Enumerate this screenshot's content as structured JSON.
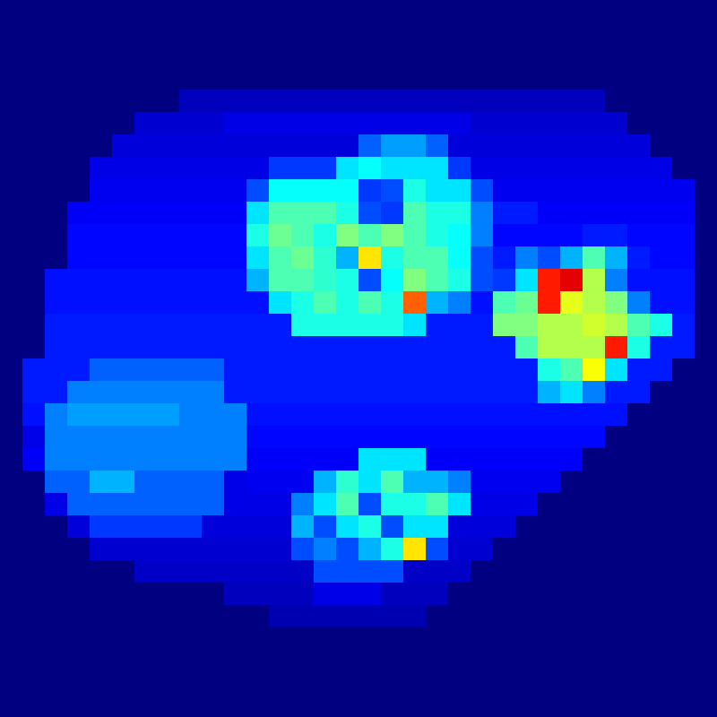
{
  "chart_data": {
    "type": "heatmap",
    "tick_labels": false,
    "zlim": [
      0,
      100
    ],
    "cells": [
      [
        0,
        0,
        0,
        0,
        0,
        0,
        0,
        0,
        0,
        0,
        0,
        0,
        0,
        0,
        0,
        0,
        0,
        0,
        0,
        0,
        0,
        0,
        0,
        0,
        0,
        0,
        0,
        0,
        0,
        0,
        0,
        0
      ],
      [
        0,
        0,
        0,
        0,
        0,
        0,
        0,
        0,
        0,
        0,
        0,
        0,
        0,
        0,
        0,
        0,
        0,
        0,
        0,
        0,
        0,
        0,
        0,
        0,
        0,
        0,
        0,
        0,
        0,
        0,
        0,
        0
      ],
      [
        0,
        0,
        0,
        0,
        0,
        0,
        0,
        0,
        0,
        0,
        0,
        0,
        0,
        0,
        0,
        0,
        0,
        0,
        0,
        0,
        0,
        0,
        0,
        0,
        0,
        0,
        0,
        0,
        0,
        0,
        0,
        0
      ],
      [
        0,
        0,
        0,
        0,
        0,
        0,
        0,
        0,
        0,
        0,
        0,
        0,
        0,
        0,
        0,
        0,
        0,
        0,
        0,
        0,
        0,
        0,
        0,
        0,
        0,
        0,
        0,
        0,
        0,
        0,
        0,
        0
      ],
      [
        0,
        0,
        0,
        0,
        0,
        0,
        0,
        0,
        6,
        6,
        6,
        6,
        6,
        6,
        6,
        6,
        6,
        6,
        6,
        6,
        6,
        6,
        6,
        6,
        6,
        6,
        6,
        0,
        0,
        0,
        0,
        0
      ],
      [
        0,
        0,
        0,
        0,
        0,
        0,
        8,
        8,
        8,
        8,
        10,
        10,
        10,
        10,
        10,
        10,
        10,
        10,
        10,
        10,
        10,
        8,
        8,
        8,
        8,
        8,
        8,
        8,
        0,
        0,
        0,
        0
      ],
      [
        0,
        0,
        0,
        0,
        0,
        9,
        9,
        9,
        9,
        9,
        9,
        9,
        9,
        9,
        9,
        9,
        22,
        28,
        28,
        22,
        9,
        9,
        9,
        9,
        9,
        9,
        9,
        9,
        9,
        0,
        0,
        0
      ],
      [
        0,
        0,
        0,
        0,
        10,
        10,
        10,
        10,
        10,
        10,
        10,
        10,
        18,
        18,
        18,
        35,
        38,
        35,
        35,
        35,
        18,
        10,
        10,
        10,
        10,
        10,
        10,
        10,
        10,
        10,
        0,
        0
      ],
      [
        0,
        0,
        0,
        0,
        11,
        11,
        11,
        11,
        11,
        11,
        11,
        20,
        38,
        38,
        38,
        38,
        18,
        20,
        40,
        35,
        35,
        20,
        11,
        11,
        11,
        11,
        11,
        11,
        11,
        11,
        11,
        0
      ],
      [
        0,
        0,
        0,
        12,
        12,
        12,
        12,
        12,
        12,
        12,
        12,
        35,
        45,
        45,
        45,
        40,
        20,
        18,
        45,
        40,
        40,
        25,
        15,
        15,
        12,
        12,
        12,
        12,
        12,
        12,
        12,
        0
      ],
      [
        0,
        0,
        0,
        13,
        13,
        13,
        13,
        13,
        13,
        13,
        13,
        40,
        48,
        45,
        40,
        50,
        45,
        50,
        45,
        40,
        38,
        25,
        13,
        13,
        13,
        13,
        15,
        15,
        13,
        13,
        13,
        0
      ],
      [
        0,
        0,
        0,
        13,
        13,
        13,
        13,
        13,
        13,
        13,
        13,
        35,
        45,
        48,
        42,
        30,
        65,
        40,
        45,
        45,
        38,
        20,
        15,
        25,
        20,
        30,
        45,
        30,
        15,
        13,
        13,
        0
      ],
      [
        0,
        0,
        14,
        14,
        14,
        14,
        14,
        14,
        14,
        14,
        14,
        30,
        45,
        45,
        42,
        40,
        20,
        38,
        50,
        45,
        40,
        20,
        18,
        35,
        85,
        90,
        55,
        25,
        14,
        14,
        14,
        0
      ],
      [
        0,
        0,
        14,
        14,
        14,
        14,
        14,
        14,
        14,
        14,
        14,
        14,
        35,
        40,
        45,
        40,
        45,
        40,
        78,
        30,
        25,
        14,
        45,
        48,
        85,
        60,
        55,
        50,
        25,
        14,
        14,
        0
      ],
      [
        0,
        0,
        15,
        15,
        15,
        15,
        15,
        15,
        15,
        15,
        15,
        15,
        15,
        40,
        40,
        40,
        40,
        40,
        35,
        15,
        15,
        15,
        50,
        50,
        55,
        55,
        58,
        55,
        45,
        40,
        15,
        0
      ],
      [
        0,
        0,
        15,
        15,
        15,
        15,
        15,
        15,
        15,
        15,
        15,
        15,
        15,
        15,
        15,
        15,
        15,
        15,
        15,
        15,
        15,
        15,
        15,
        45,
        55,
        55,
        55,
        85,
        40,
        15,
        15,
        0
      ],
      [
        0,
        15,
        15,
        15,
        22,
        22,
        22,
        22,
        22,
        22,
        15,
        15,
        15,
        15,
        15,
        15,
        15,
        15,
        15,
        15,
        15,
        15,
        15,
        15,
        40,
        45,
        62,
        35,
        15,
        15,
        0,
        0
      ],
      [
        0,
        15,
        15,
        25,
        25,
        25,
        25,
        25,
        25,
        25,
        15,
        15,
        15,
        15,
        15,
        15,
        15,
        15,
        15,
        15,
        15,
        15,
        15,
        15,
        30,
        35,
        25,
        15,
        15,
        0,
        0,
        0
      ],
      [
        0,
        14,
        25,
        28,
        28,
        28,
        28,
        28,
        25,
        25,
        25,
        14,
        14,
        14,
        14,
        14,
        14,
        14,
        14,
        14,
        14,
        14,
        14,
        14,
        14,
        14,
        14,
        14,
        0,
        0,
        0,
        0
      ],
      [
        0,
        10,
        25,
        25,
        25,
        25,
        25,
        25,
        25,
        25,
        25,
        13,
        13,
        13,
        13,
        13,
        13,
        13,
        13,
        13,
        13,
        13,
        13,
        13,
        13,
        13,
        13,
        0,
        0,
        0,
        0,
        0
      ],
      [
        0,
        12,
        25,
        25,
        25,
        25,
        25,
        25,
        25,
        25,
        25,
        12,
        12,
        12,
        12,
        12,
        35,
        35,
        35,
        12,
        12,
        12,
        12,
        12,
        12,
        12,
        0,
        0,
        0,
        0,
        0,
        0
      ],
      [
        0,
        0,
        22,
        22,
        30,
        30,
        22,
        22,
        22,
        22,
        10,
        11,
        11,
        11,
        30,
        42,
        35,
        45,
        30,
        30,
        25,
        11,
        11,
        11,
        11,
        0,
        0,
        0,
        0,
        0,
        0,
        0
      ],
      [
        0,
        0,
        10,
        22,
        22,
        22,
        22,
        22,
        22,
        22,
        10,
        10,
        10,
        25,
        35,
        45,
        20,
        40,
        40,
        45,
        35,
        10,
        10,
        10,
        0,
        0,
        0,
        0,
        0,
        0,
        0,
        0
      ],
      [
        0,
        0,
        0,
        9,
        18,
        18,
        18,
        18,
        18,
        9,
        9,
        9,
        9,
        30,
        20,
        35,
        40,
        20,
        35,
        35,
        9,
        9,
        9,
        0,
        0,
        0,
        0,
        0,
        0,
        0,
        0,
        0
      ],
      [
        0,
        0,
        0,
        0,
        8,
        8,
        8,
        8,
        8,
        8,
        8,
        8,
        8,
        20,
        25,
        20,
        30,
        40,
        65,
        20,
        8,
        8,
        0,
        0,
        0,
        0,
        0,
        0,
        0,
        0,
        0,
        0
      ],
      [
        0,
        0,
        0,
        0,
        0,
        0,
        7,
        7,
        7,
        7,
        7,
        7,
        7,
        7,
        20,
        20,
        20,
        20,
        7,
        7,
        7,
        0,
        0,
        0,
        0,
        0,
        0,
        0,
        0,
        0,
        0,
        0
      ],
      [
        0,
        0,
        0,
        0,
        0,
        0,
        0,
        0,
        0,
        0,
        6,
        6,
        6,
        6,
        10,
        10,
        10,
        6,
        6,
        6,
        0,
        0,
        0,
        0,
        0,
        0,
        0,
        0,
        0,
        0,
        0,
        0
      ],
      [
        0,
        0,
        0,
        0,
        0,
        0,
        0,
        0,
        0,
        0,
        0,
        0,
        5,
        5,
        5,
        5,
        5,
        5,
        5,
        0,
        0,
        0,
        0,
        0,
        0,
        0,
        0,
        0,
        0,
        0,
        0,
        0
      ],
      [
        0,
        0,
        0,
        0,
        0,
        0,
        0,
        0,
        0,
        0,
        0,
        0,
        0,
        0,
        0,
        0,
        0,
        0,
        0,
        0,
        0,
        0,
        0,
        0,
        0,
        0,
        0,
        0,
        0,
        0,
        0,
        0
      ],
      [
        0,
        0,
        0,
        0,
        0,
        0,
        0,
        0,
        0,
        0,
        0,
        0,
        0,
        0,
        0,
        0,
        0,
        0,
        0,
        0,
        0,
        0,
        0,
        0,
        0,
        0,
        0,
        0,
        0,
        0,
        0,
        0
      ],
      [
        0,
        0,
        0,
        0,
        0,
        0,
        0,
        0,
        0,
        0,
        0,
        0,
        0,
        0,
        0,
        0,
        0,
        0,
        0,
        0,
        0,
        0,
        0,
        0,
        0,
        0,
        0,
        0,
        0,
        0,
        0,
        0
      ],
      [
        0,
        0,
        0,
        0,
        0,
        0,
        0,
        0,
        0,
        0,
        0,
        0,
        0,
        0,
        0,
        0,
        0,
        0,
        0,
        0,
        0,
        0,
        0,
        0,
        0,
        0,
        0,
        0,
        0,
        0,
        0,
        0
      ]
    ]
  }
}
